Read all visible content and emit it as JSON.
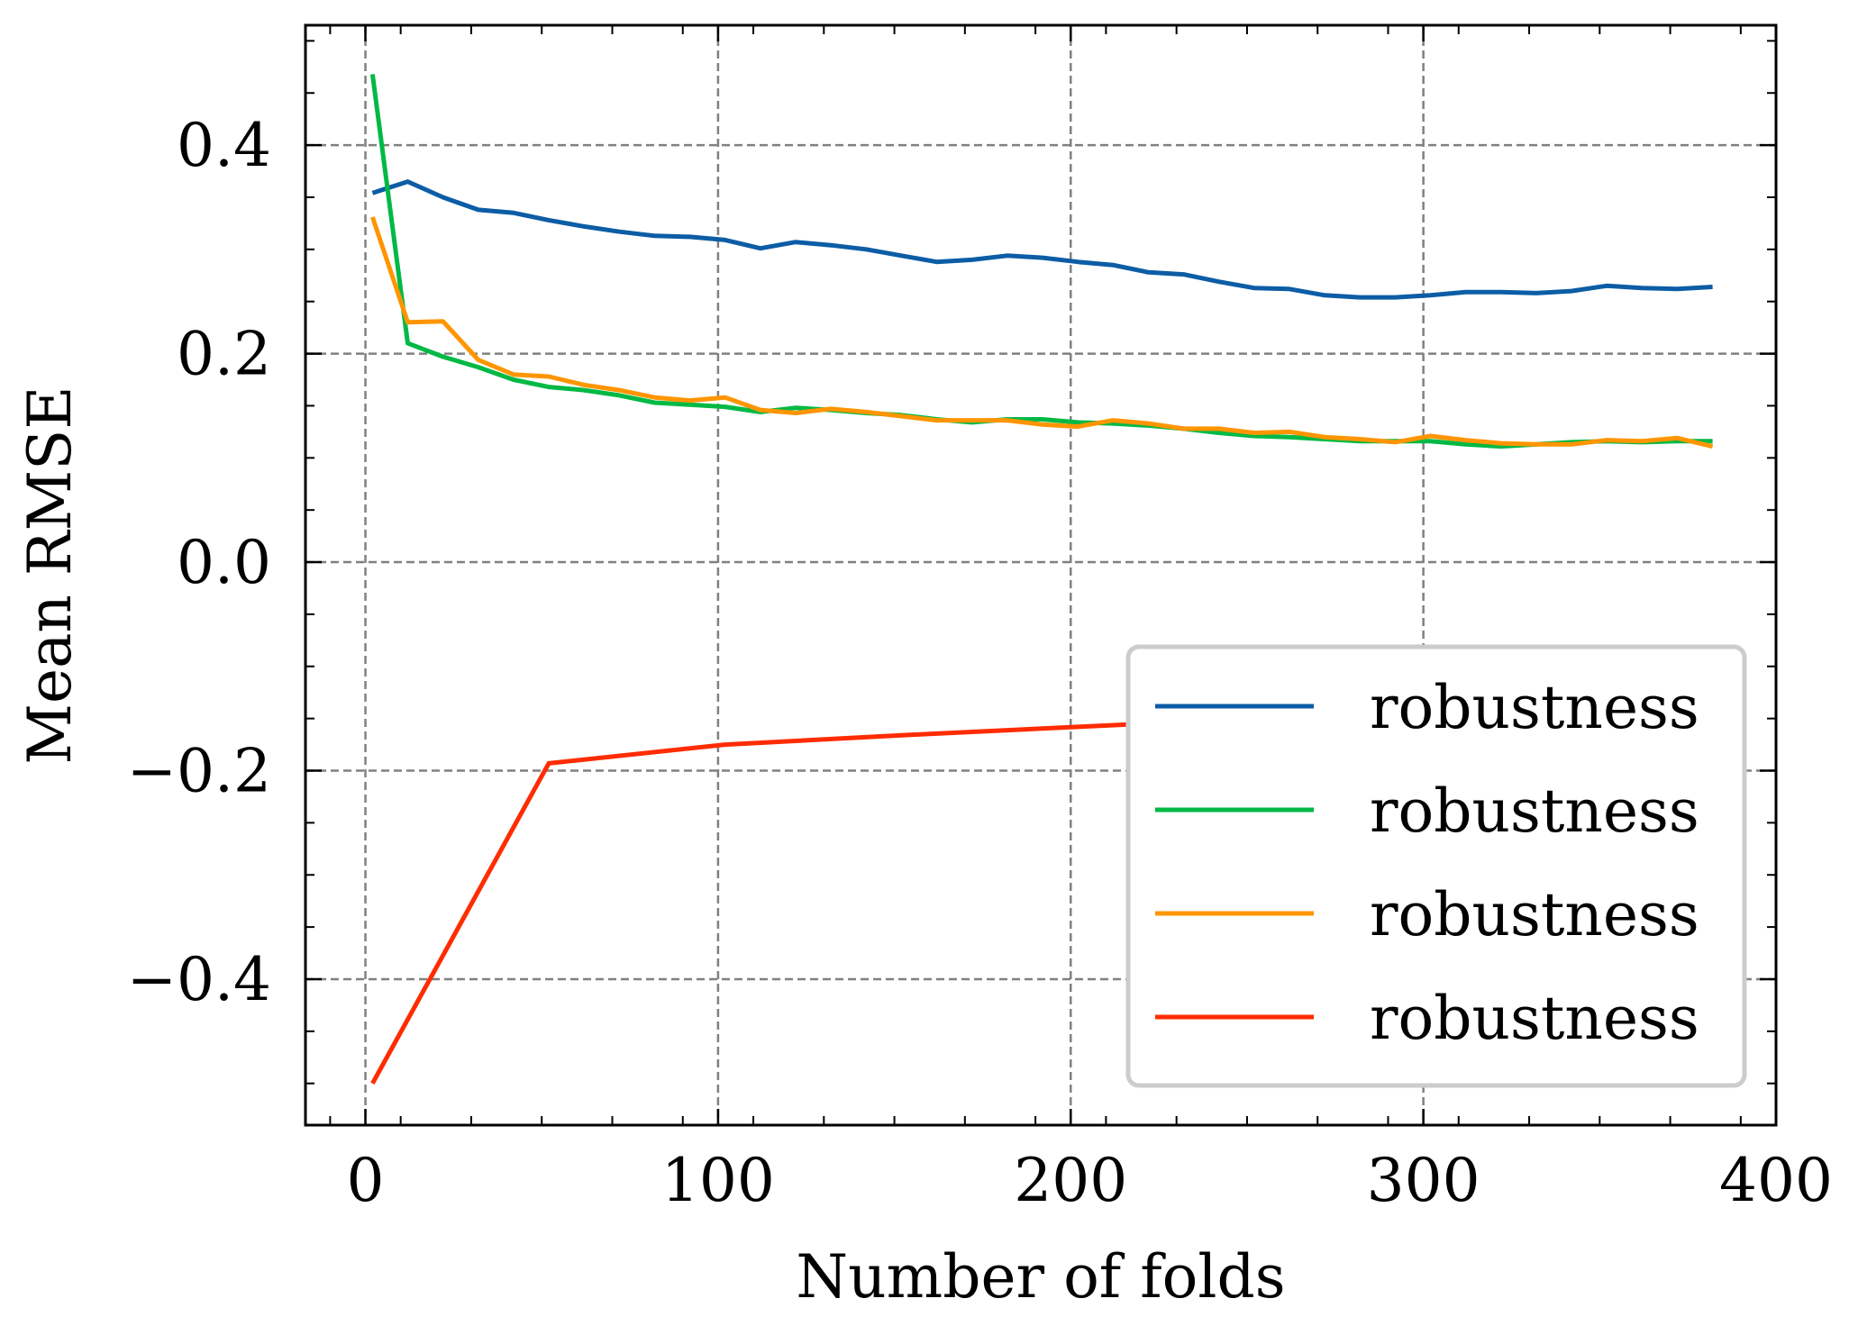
{
  "chart_data": {
    "type": "line",
    "title": "",
    "xlabel": "Number of folds",
    "ylabel": "Mean RMSE",
    "xlim": [
      -17,
      400
    ],
    "ylim": [
      -0.54,
      0.515
    ],
    "xticks": [
      0,
      100,
      200,
      300,
      400
    ],
    "xtick_labels": [
      "0",
      "100",
      "200",
      "300",
      "400"
    ],
    "yticks": [
      -0.4,
      -0.2,
      0.0,
      0.2,
      0.4
    ],
    "ytick_labels": [
      "−0.4",
      "−0.2",
      "0.0",
      "0.2",
      "0.4"
    ],
    "grid": true,
    "legend_position": "lower right",
    "series": [
      {
        "name": "robustness",
        "color": "#0C5DA5",
        "x": [
          2,
          12,
          22,
          32,
          42,
          52,
          62,
          72,
          82,
          92,
          102,
          112,
          122,
          132,
          142,
          152,
          162,
          172,
          182,
          192,
          202,
          212,
          222,
          232,
          242,
          252,
          262,
          272,
          282,
          292,
          302,
          312,
          322,
          332,
          342,
          352,
          362,
          372,
          382
        ],
        "y": [
          0.354,
          0.365,
          0.35,
          0.338,
          0.335,
          0.328,
          0.322,
          0.317,
          0.313,
          0.312,
          0.309,
          0.301,
          0.307,
          0.304,
          0.3,
          0.294,
          0.288,
          0.29,
          0.294,
          0.292,
          0.288,
          0.285,
          0.278,
          0.276,
          0.269,
          0.263,
          0.262,
          0.256,
          0.254,
          0.254,
          0.256,
          0.259,
          0.259,
          0.258,
          0.26,
          0.265,
          0.263,
          0.262,
          0.264
        ]
      },
      {
        "name": "robustness",
        "color": "#00B945",
        "x": [
          2,
          12,
          22,
          32,
          42,
          52,
          62,
          72,
          82,
          92,
          102,
          112,
          122,
          132,
          142,
          152,
          162,
          172,
          182,
          192,
          202,
          212,
          222,
          232,
          242,
          252,
          262,
          272,
          282,
          292,
          302,
          312,
          322,
          332,
          342,
          352,
          362,
          372,
          382
        ],
        "y": [
          0.468,
          0.21,
          0.197,
          0.187,
          0.175,
          0.168,
          0.165,
          0.16,
          0.153,
          0.151,
          0.149,
          0.144,
          0.148,
          0.146,
          0.143,
          0.141,
          0.137,
          0.134,
          0.137,
          0.137,
          0.134,
          0.133,
          0.131,
          0.128,
          0.124,
          0.121,
          0.12,
          0.118,
          0.116,
          0.116,
          0.116,
          0.113,
          0.111,
          0.113,
          0.115,
          0.116,
          0.115,
          0.116,
          0.116
        ]
      },
      {
        "name": "robustness",
        "color": "#FF9500",
        "x": [
          2,
          12,
          22,
          32,
          42,
          52,
          62,
          72,
          82,
          92,
          102,
          112,
          122,
          132,
          142,
          152,
          162,
          172,
          182,
          192,
          202,
          212,
          222,
          232,
          242,
          252,
          262,
          272,
          282,
          292,
          302,
          312,
          322,
          332,
          342,
          352,
          362,
          372,
          382
        ],
        "y": [
          0.331,
          0.23,
          0.231,
          0.194,
          0.18,
          0.178,
          0.17,
          0.165,
          0.158,
          0.155,
          0.158,
          0.146,
          0.143,
          0.147,
          0.144,
          0.14,
          0.136,
          0.136,
          0.136,
          0.132,
          0.13,
          0.136,
          0.133,
          0.128,
          0.128,
          0.124,
          0.125,
          0.12,
          0.118,
          0.115,
          0.121,
          0.117,
          0.114,
          0.113,
          0.113,
          0.117,
          0.116,
          0.119,
          0.111
        ]
      },
      {
        "name": "robustness",
        "color": "#FF2C00",
        "x": [
          2,
          52,
          102,
          152,
          202,
          252,
          302,
          352,
          382
        ],
        "y": [
          -0.5,
          -0.193,
          -0.175,
          -0.166,
          -0.158,
          -0.15,
          -0.145,
          -0.14,
          -0.137
        ]
      }
    ]
  }
}
